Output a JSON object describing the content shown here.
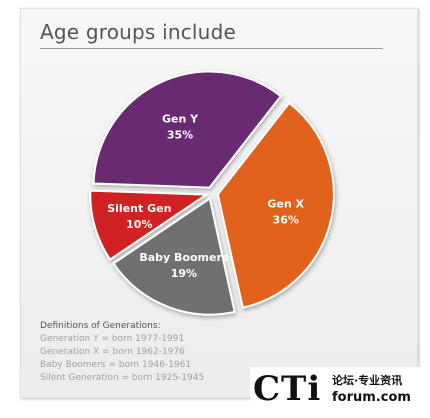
{
  "title": "Age groups include",
  "chart_data": {
    "type": "pie",
    "title": "Age groups include",
    "slices": [
      {
        "label": "Gen Y",
        "value": 35,
        "value_label": "35%",
        "color": "#6b2c72"
      },
      {
        "label": "Gen X",
        "value": 36,
        "value_label": "36%",
        "color": "#e0621c"
      },
      {
        "label": "Baby Boomers",
        "value": 19,
        "value_label": "19%",
        "color": "#6f6f6f"
      },
      {
        "label": "Silent Gen",
        "value": 10,
        "value_label": "10%",
        "color": "#d02424"
      }
    ]
  },
  "definitions": {
    "heading": "Definitions of Generations:",
    "items": [
      "Generation Y = born 1977-1991",
      "Generation X = born 1962-1976",
      "Baby Boomers = born 1946-1961",
      "Silent Generation = born 1925-1945"
    ]
  },
  "watermark": {
    "logo": "CTi",
    "subtitle": "论坛·专业资讯",
    "domain": "forum.com"
  }
}
